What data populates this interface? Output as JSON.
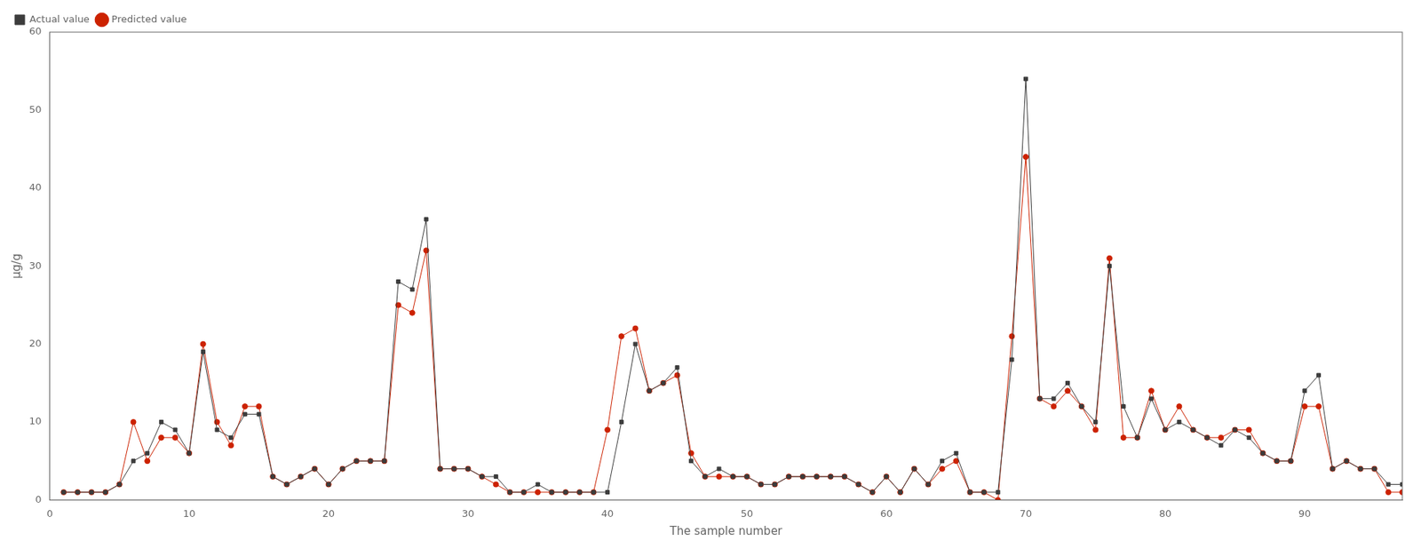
{
  "chart_data": {
    "type": "line",
    "xlabel": "The sample number",
    "ylabel": "μg/g",
    "x": [
      1,
      2,
      3,
      4,
      5,
      6,
      7,
      8,
      9,
      10,
      11,
      12,
      13,
      14,
      15,
      16,
      17,
      18,
      19,
      20,
      21,
      22,
      23,
      24,
      25,
      26,
      27,
      28,
      29,
      30,
      31,
      32,
      33,
      34,
      35,
      36,
      37,
      38,
      39,
      40,
      41,
      42,
      43,
      44,
      45,
      46,
      47,
      48,
      49,
      50,
      51,
      52,
      53,
      54,
      55,
      56,
      57,
      58,
      59,
      60,
      61,
      62,
      63,
      64,
      65,
      66,
      67,
      68,
      69,
      70,
      71,
      72,
      73,
      74,
      75,
      76,
      77,
      78,
      79,
      80,
      81,
      82,
      83,
      84,
      85,
      86,
      87,
      88,
      89,
      90,
      91,
      92,
      93,
      94,
      95,
      96,
      97
    ],
    "series": [
      {
        "name": "Actual value",
        "color": "#3c3c3c",
        "marker": "square",
        "values": [
          1,
          1,
          1,
          1,
          2,
          5,
          6,
          10,
          9,
          6,
          19,
          9,
          8,
          11,
          11,
          3,
          2,
          3,
          4,
          2,
          4,
          5,
          5,
          5,
          28,
          27,
          36,
          4,
          4,
          4,
          3,
          3,
          1,
          1,
          2,
          1,
          1,
          1,
          1,
          1,
          10,
          20,
          14,
          15,
          17,
          5,
          3,
          4,
          3,
          3,
          2,
          2,
          3,
          3,
          3,
          3,
          3,
          2,
          1,
          3,
          1,
          4,
          2,
          5,
          6,
          1,
          1,
          1,
          18,
          54,
          13,
          13,
          15,
          12,
          10,
          30,
          12,
          8,
          13,
          9,
          10,
          9,
          8,
          7,
          9,
          8,
          6,
          5,
          5,
          14,
          16,
          4,
          5,
          4,
          4,
          2,
          2
        ]
      },
      {
        "name": "Predicted value",
        "color": "#cc2200",
        "marker": "circle",
        "values": [
          1,
          1,
          1,
          1,
          2,
          10,
          5,
          8,
          8,
          6,
          20,
          10,
          7,
          12,
          12,
          3,
          2,
          3,
          4,
          2,
          4,
          5,
          5,
          5,
          25,
          24,
          32,
          4,
          4,
          4,
          3,
          2,
          1,
          1,
          1,
          1,
          1,
          1,
          1,
          9,
          21,
          22,
          14,
          15,
          16,
          6,
          3,
          3,
          3,
          3,
          2,
          2,
          3,
          3,
          3,
          3,
          3,
          2,
          1,
          3,
          1,
          4,
          2,
          4,
          5,
          1,
          1,
          0,
          21,
          44,
          13,
          12,
          14,
          12,
          9,
          31,
          8,
          8,
          14,
          9,
          12,
          9,
          8,
          8,
          9,
          9,
          6,
          5,
          5,
          12,
          12,
          4,
          5,
          4,
          4,
          1,
          1
        ]
      }
    ],
    "xlim": [
      0,
      97
    ],
    "ylim": [
      0,
      60
    ],
    "xticks": [
      0,
      10,
      20,
      30,
      40,
      50,
      60,
      70,
      80,
      90
    ],
    "yticks": [
      0,
      10,
      20,
      30,
      40,
      50,
      60
    ],
    "grid": false,
    "legend": "upper left"
  }
}
